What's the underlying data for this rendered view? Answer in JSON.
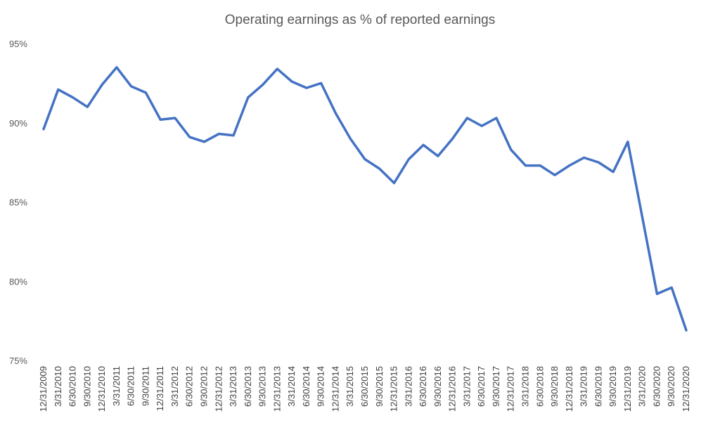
{
  "chart_data": {
    "type": "line",
    "title": "Operating earnings as % of reported earnings",
    "xlabel": "",
    "ylabel": "",
    "ylim": [
      75,
      95
    ],
    "yticks": [
      75,
      80,
      85,
      90,
      95
    ],
    "ytick_suffix": "%",
    "grid": false,
    "legend": "none",
    "line_color": "#4472C4",
    "categories": [
      "12/31/2009",
      "3/31/2010",
      "6/30/2010",
      "9/30/2010",
      "12/31/2010",
      "3/31/2011",
      "6/30/2011",
      "9/30/2011",
      "12/31/2011",
      "3/31/2012",
      "6/30/2012",
      "9/30/2012",
      "12/31/2012",
      "3/31/2013",
      "6/30/2013",
      "9/30/2013",
      "12/31/2013",
      "3/31/2014",
      "6/30/2014",
      "9/30/2014",
      "12/31/2014",
      "3/31/2015",
      "6/30/2015",
      "9/30/2015",
      "12/31/2015",
      "3/31/2016",
      "6/30/2016",
      "9/30/2016",
      "12/31/2016",
      "3/31/2017",
      "6/30/2017",
      "9/30/2017",
      "12/31/2017",
      "3/31/2018",
      "6/30/2018",
      "9/30/2018",
      "12/31/2018",
      "3/31/2019",
      "6/30/2019",
      "9/30/2019",
      "12/31/2019",
      "3/31/2020",
      "6/30/2020",
      "9/30/2020",
      "12/31/2020"
    ],
    "series": [
      {
        "values": [
          89.6,
          92.1,
          91.6,
          91.0,
          92.4,
          93.5,
          92.3,
          91.9,
          90.2,
          90.3,
          89.1,
          88.8,
          89.3,
          89.2,
          91.6,
          92.4,
          93.4,
          92.6,
          92.2,
          92.5,
          90.6,
          89.0,
          87.7,
          87.1,
          86.2,
          87.7,
          88.6,
          87.9,
          89.0,
          90.3,
          89.8,
          90.3,
          88.3,
          87.3,
          87.3,
          86.7,
          87.3,
          87.8,
          87.5,
          86.9,
          88.8,
          84.0,
          79.2,
          79.6,
          76.9
        ]
      }
    ]
  }
}
